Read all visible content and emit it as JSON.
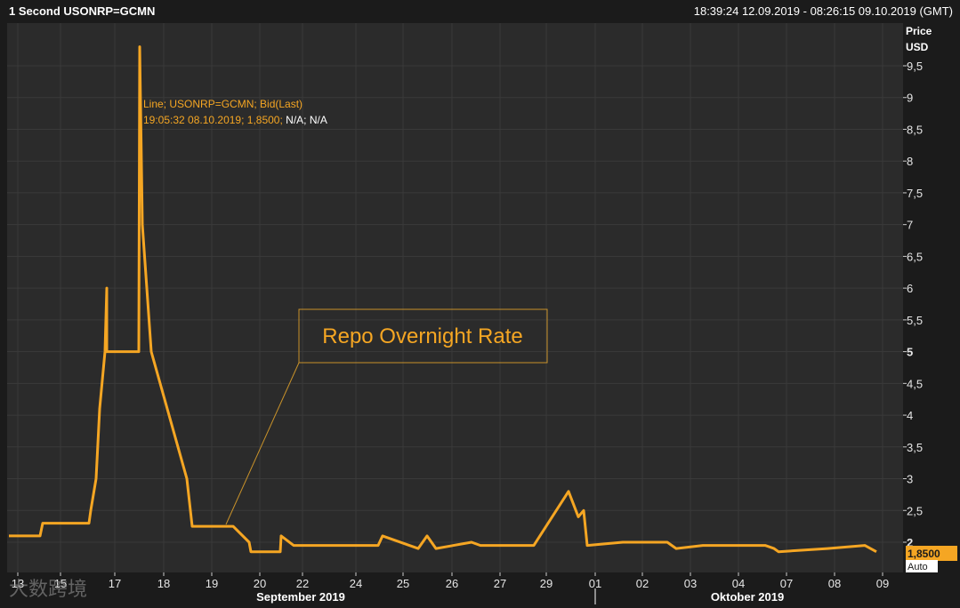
{
  "header": {
    "title": "1 Second USONRP=GCMN",
    "range": "18:39:24 12.09.2019 - 08:26:15 09.10.2019 (GMT)"
  },
  "axis": {
    "unit_label_1": "Price",
    "unit_label_2": "USD",
    "auto_label": "Auto",
    "last_price_label": "1,8500"
  },
  "tooltip": {
    "line1": "Line; USONRP=GCMN; Bid(Last)",
    "line2_colored": "19:05:32 08.10.2019; 1,8500;",
    "line2_white": " N/A; N/A"
  },
  "annotation": {
    "text": "Repo Overnight Rate"
  },
  "watermark": {
    "text": "大数跨境"
  },
  "colors": {
    "line": "#f5a623",
    "background": "#2b2b2b",
    "frame": "#1b1b1b",
    "grid": "#3a3a3a"
  },
  "chart_data": {
    "type": "line",
    "title": "1 Second USONRP=GCMN",
    "ylabel": "Price USD",
    "ylim": [
      1.6,
      10.1
    ],
    "grid": true,
    "y_ticks": [
      "2",
      "2,5",
      "3",
      "3,5",
      "4",
      "4,5",
      "5",
      "5,5",
      "6",
      "6,5",
      "7",
      "7,5",
      "8",
      "8,5",
      "9",
      "9,5"
    ],
    "x_ticks": [
      "13",
      "15",
      "17",
      "18",
      "19",
      "20",
      "22",
      "24",
      "25",
      "26",
      "27",
      "29",
      "01",
      "02",
      "03",
      "04",
      "07",
      "08",
      "09"
    ],
    "x_month_labels": [
      "September 2019",
      "Oktober 2019"
    ],
    "series": [
      {
        "name": "USONRP=GCMN",
        "x": [
          "2019-09-12",
          "2019-09-13",
          "2019-09-13",
          "2019-09-16",
          "2019-09-16",
          "2019-09-16",
          "2019-09-16",
          "2019-09-16",
          "2019-09-16",
          "2019-09-17",
          "2019-09-17",
          "2019-09-17",
          "2019-09-17",
          "2019-09-17",
          "2019-09-18",
          "2019-09-18",
          "2019-09-18",
          "2019-09-19",
          "2019-09-19",
          "2019-09-20",
          "2019-09-20",
          "2019-09-23",
          "2019-09-23",
          "2019-09-24",
          "2019-09-24",
          "2019-09-25",
          "2019-09-25",
          "2019-09-26",
          "2019-09-26",
          "2019-09-27",
          "2019-09-27",
          "2019-09-30",
          "2019-09-30",
          "2019-09-30",
          "2019-09-30",
          "2019-10-01",
          "2019-10-01",
          "2019-10-02",
          "2019-10-03",
          "2019-10-03",
          "2019-10-04",
          "2019-10-07",
          "2019-10-07",
          "2019-10-08",
          "2019-10-08",
          "2019-10-09"
        ],
        "y": [
          2.1,
          2.1,
          2.3,
          2.3,
          2.5,
          3.0,
          4.1,
          5.0,
          6.0,
          5.0,
          5.0,
          9.8,
          7.0,
          5.0,
          3.0,
          2.25,
          2.25,
          2.25,
          2.0,
          1.85,
          1.85,
          2.1,
          1.95,
          1.95,
          2.1,
          1.9,
          2.1,
          1.9,
          2.0,
          1.95,
          1.95,
          1.95,
          2.8,
          2.4,
          2.5,
          1.95,
          2.0,
          2.0,
          1.9,
          1.95,
          1.95,
          1.9,
          1.85,
          1.9,
          1.95,
          1.85
        ]
      }
    ]
  }
}
